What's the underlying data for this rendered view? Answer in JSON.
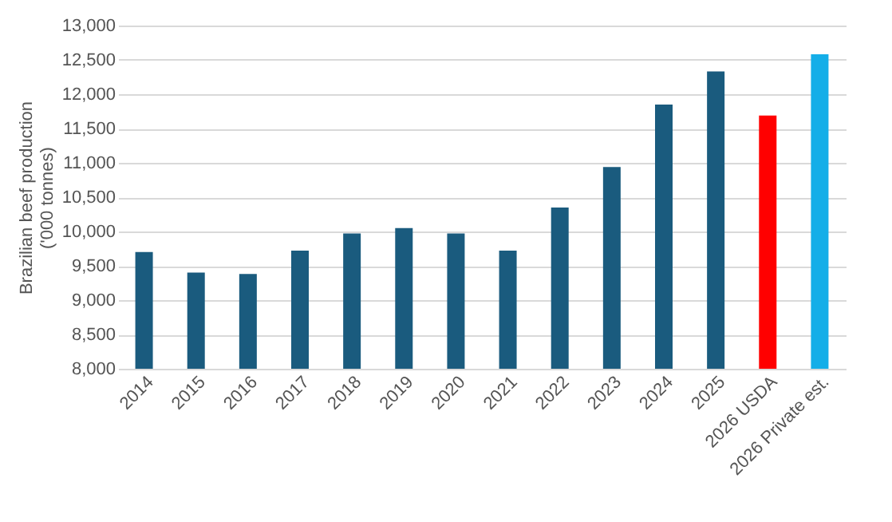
{
  "chart_data": {
    "type": "bar",
    "ylabel": "Brazilian beef production\n('000 tonnes)",
    "categories": [
      "2014",
      "2015",
      "2016",
      "2017",
      "2018",
      "2019",
      "2020",
      "2021",
      "2022",
      "2023",
      "2024",
      "2025",
      "2026 USDA",
      "2026 Private est."
    ],
    "values": [
      9700,
      9400,
      9380,
      9720,
      9970,
      10050,
      9970,
      9720,
      10350,
      10940,
      11850,
      12330,
      11690,
      12580
    ],
    "colors": [
      "#1a5b7e",
      "#1a5b7e",
      "#1a5b7e",
      "#1a5b7e",
      "#1a5b7e",
      "#1a5b7e",
      "#1a5b7e",
      "#1a5b7e",
      "#1a5b7e",
      "#1a5b7e",
      "#1a5b7e",
      "#1a5b7e",
      "#ff0000",
      "#14aee8"
    ],
    "ylim": [
      8000,
      13000
    ],
    "yticks": [
      {
        "value": 8000,
        "label": "8,000"
      },
      {
        "value": 8500,
        "label": "8,500"
      },
      {
        "value": 9000,
        "label": "9,000"
      },
      {
        "value": 9500,
        "label": "9,500"
      },
      {
        "value": 10000,
        "label": "10,000"
      },
      {
        "value": 10500,
        "label": "10,500"
      },
      {
        "value": 11000,
        "label": "11,000"
      },
      {
        "value": 11500,
        "label": "11,500"
      },
      {
        "value": 12000,
        "label": "12,000"
      },
      {
        "value": 12500,
        "label": "12,500"
      },
      {
        "value": 13000,
        "label": "13,000"
      }
    ],
    "grid": "y"
  }
}
